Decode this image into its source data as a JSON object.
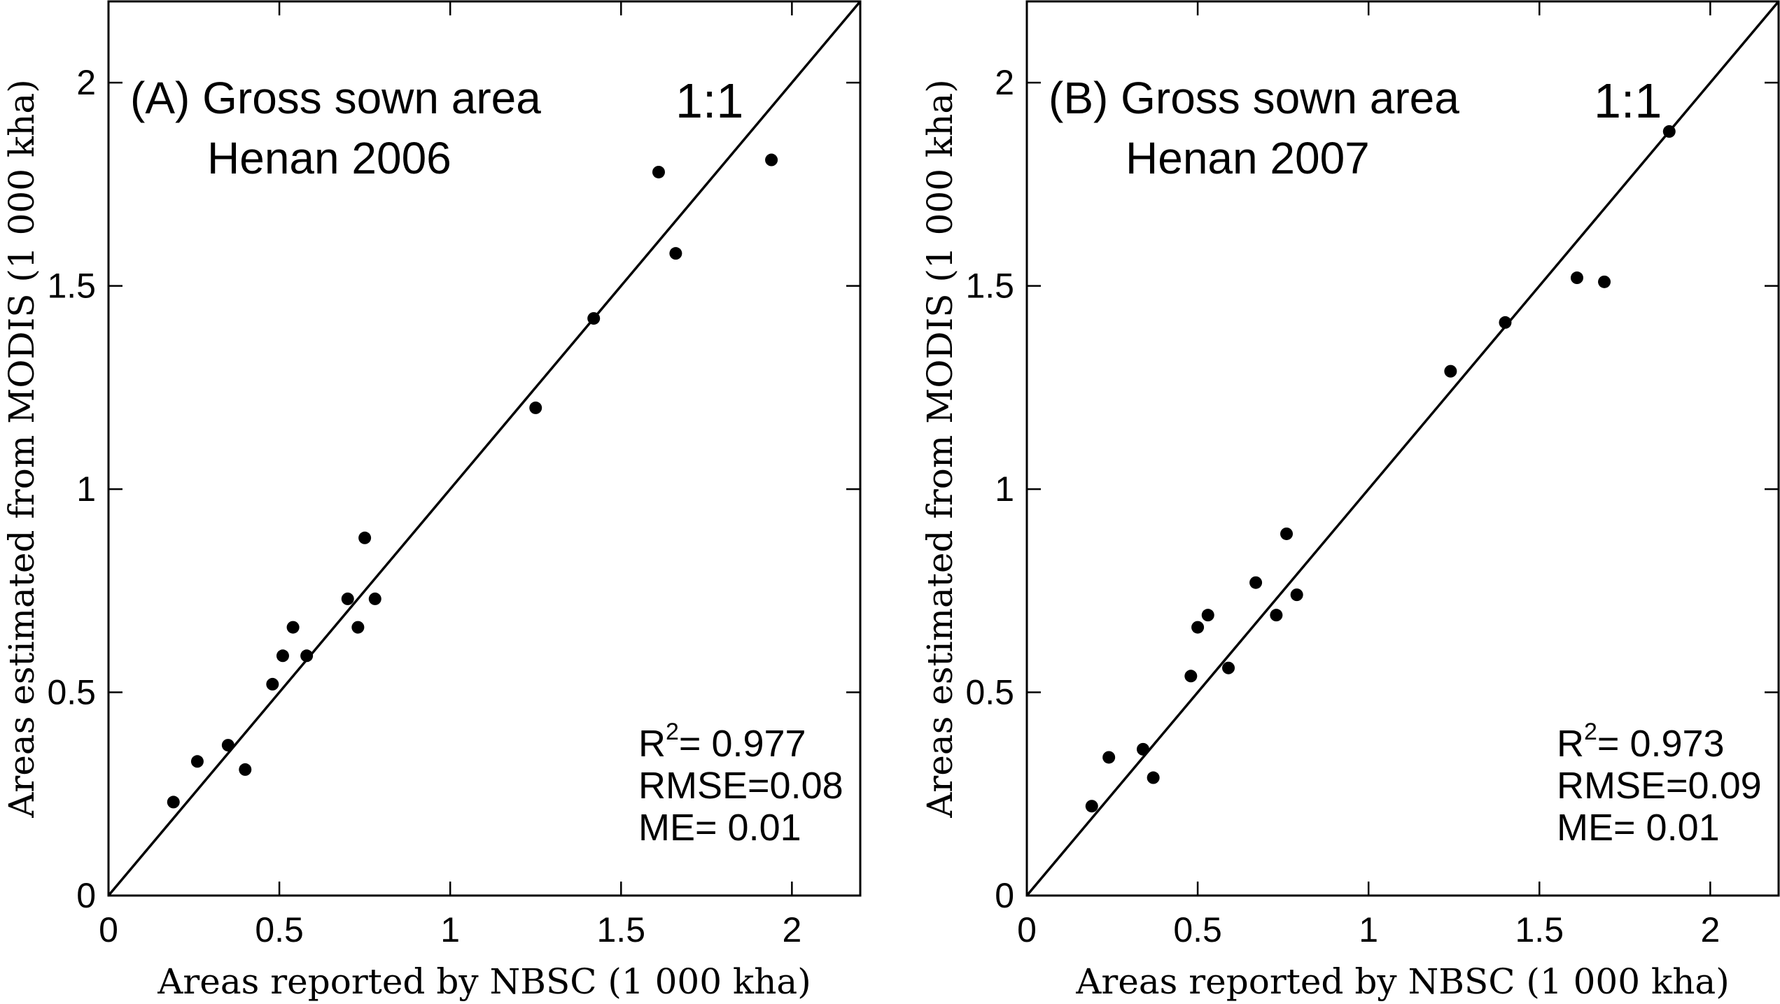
{
  "chart_data": [
    {
      "type": "scatter",
      "panel": "A",
      "title_line1": "(A) Gross sown area",
      "title_line2": "Henan 2006",
      "reference_label": "1:1",
      "xlabel": "Areas reported by NBSC (1 000 kha)",
      "ylabel": "Areas estimated from MODIS (1 000 kha)",
      "xlim": [
        0,
        2.2
      ],
      "ylim": [
        0,
        2.2
      ],
      "xticks": [
        0,
        0.5,
        1,
        1.5,
        2
      ],
      "yticks": [
        0,
        0.5,
        1,
        1.5,
        2
      ],
      "xtick_labels": [
        "0",
        "0.5",
        "1",
        "1.5",
        "2"
      ],
      "ytick_labels": [
        "0",
        "0.5",
        "1",
        "1.5",
        "2"
      ],
      "stats": {
        "r2_label": "R",
        "r2_sup": "2",
        "r2_value": "= 0.977",
        "rmse": "RMSE=0.08",
        "me": "ME= 0.01"
      },
      "points": [
        {
          "x": 0.19,
          "y": 0.23
        },
        {
          "x": 0.26,
          "y": 0.33
        },
        {
          "x": 0.35,
          "y": 0.37
        },
        {
          "x": 0.4,
          "y": 0.31
        },
        {
          "x": 0.48,
          "y": 0.52
        },
        {
          "x": 0.51,
          "y": 0.59
        },
        {
          "x": 0.54,
          "y": 0.66
        },
        {
          "x": 0.58,
          "y": 0.59
        },
        {
          "x": 0.7,
          "y": 0.73
        },
        {
          "x": 0.73,
          "y": 0.66
        },
        {
          "x": 0.75,
          "y": 0.88
        },
        {
          "x": 0.78,
          "y": 0.73
        },
        {
          "x": 1.25,
          "y": 1.2
        },
        {
          "x": 1.42,
          "y": 1.42
        },
        {
          "x": 1.61,
          "y": 1.78
        },
        {
          "x": 1.66,
          "y": 1.58
        },
        {
          "x": 1.94,
          "y": 1.81
        }
      ]
    },
    {
      "type": "scatter",
      "panel": "B",
      "title_line1": "(B) Gross sown area",
      "title_line2": "Henan 2007",
      "reference_label": "1:1",
      "xlabel": "Areas reported by NBSC (1 000 kha)",
      "ylabel": "Areas estimated from MODIS (1 000 kha)",
      "xlim": [
        0,
        2.2
      ],
      "ylim": [
        0,
        2.2
      ],
      "xticks": [
        0,
        0.5,
        1,
        1.5,
        2
      ],
      "yticks": [
        0,
        0.5,
        1,
        1.5,
        2
      ],
      "xtick_labels": [
        "0",
        "0.5",
        "1",
        "1.5",
        "2"
      ],
      "ytick_labels": [
        "0",
        "0.5",
        "1",
        "1.5",
        "2"
      ],
      "stats": {
        "r2_label": "R",
        "r2_sup": "2",
        "r2_value": "= 0.973",
        "rmse": "RMSE=0.09",
        "me": "ME= 0.01"
      },
      "points": [
        {
          "x": 0.19,
          "y": 0.22
        },
        {
          "x": 0.24,
          "y": 0.34
        },
        {
          "x": 0.34,
          "y": 0.36
        },
        {
          "x": 0.37,
          "y": 0.29
        },
        {
          "x": 0.48,
          "y": 0.54
        },
        {
          "x": 0.5,
          "y": 0.66
        },
        {
          "x": 0.53,
          "y": 0.69
        },
        {
          "x": 0.59,
          "y": 0.56
        },
        {
          "x": 0.67,
          "y": 0.77
        },
        {
          "x": 0.73,
          "y": 0.69
        },
        {
          "x": 0.76,
          "y": 0.89
        },
        {
          "x": 0.79,
          "y": 0.74
        },
        {
          "x": 1.24,
          "y": 1.29
        },
        {
          "x": 1.4,
          "y": 1.41
        },
        {
          "x": 1.61,
          "y": 1.52
        },
        {
          "x": 1.69,
          "y": 1.51
        },
        {
          "x": 1.88,
          "y": 1.88
        }
      ]
    }
  ]
}
